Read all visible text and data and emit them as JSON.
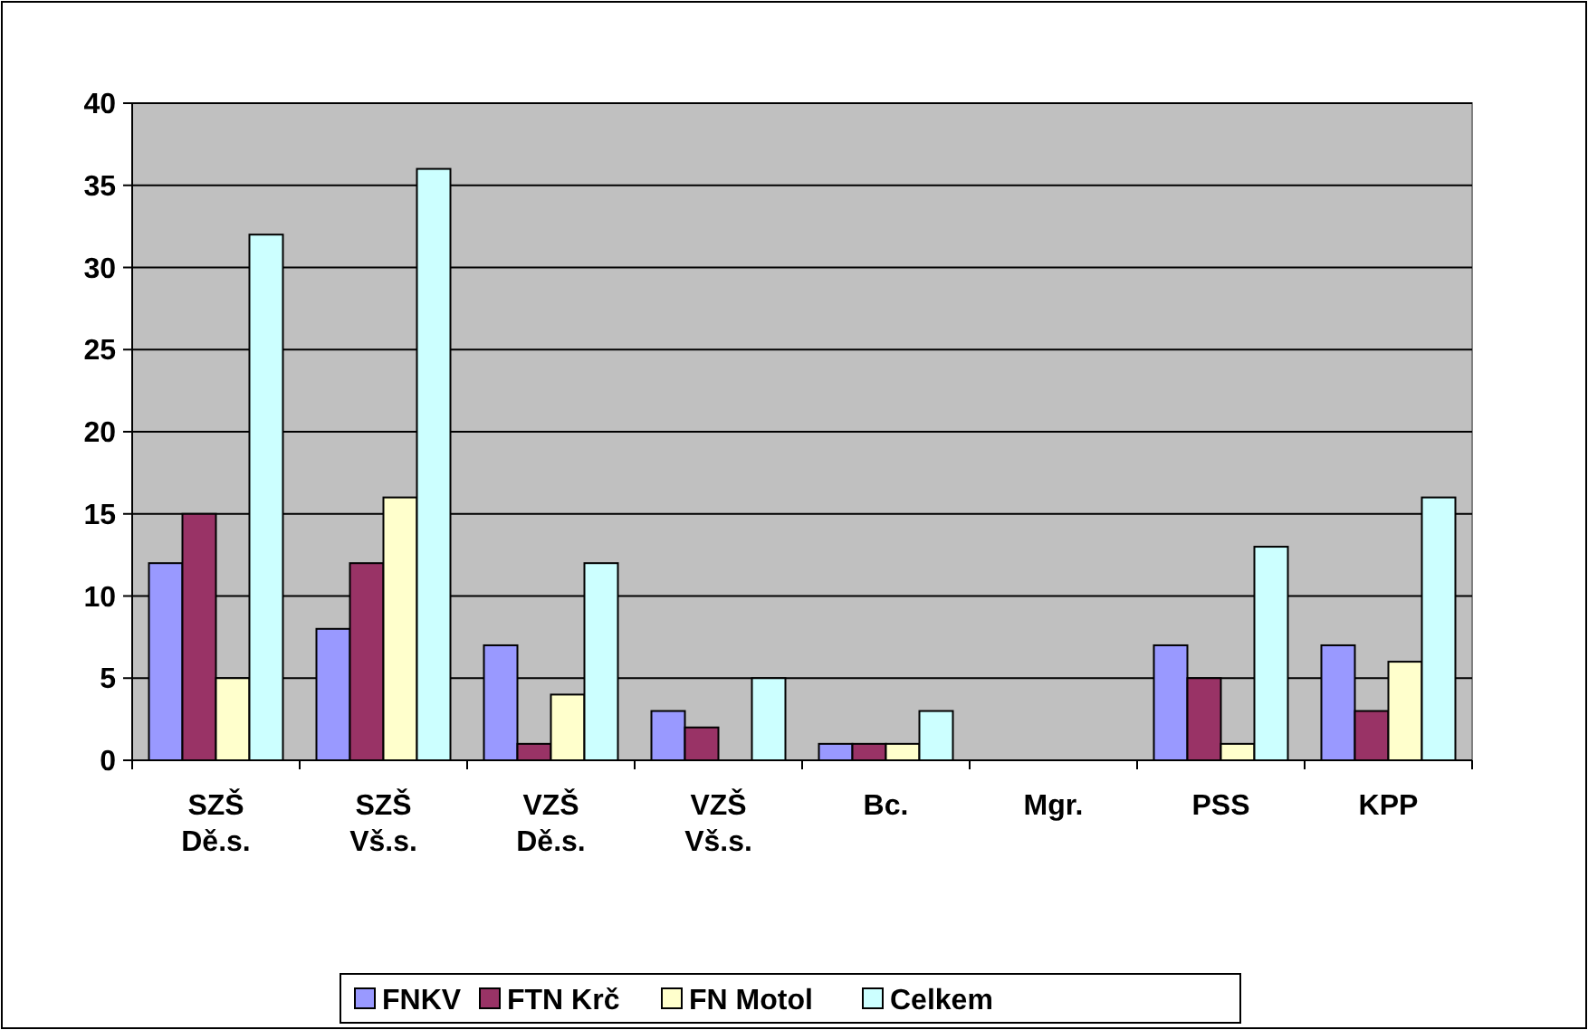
{
  "chart_data": {
    "type": "bar",
    "categories": [
      "SZŠ Dě.s.",
      "SZŠ Vš.s.",
      "VZŠ Dě.s.",
      "VZŠ Vš.s.",
      "Bc.",
      "Mgr.",
      "PSS",
      "KPP"
    ],
    "series": [
      {
        "name": "FNKV",
        "color": "#9999ff",
        "values": [
          12,
          8,
          7,
          3,
          1,
          0,
          7,
          7
        ]
      },
      {
        "name": "FTN Krč",
        "color": "#993366",
        "values": [
          15,
          12,
          1,
          2,
          1,
          0,
          5,
          3
        ]
      },
      {
        "name": "FN Motol",
        "color": "#ffffcc",
        "values": [
          5,
          16,
          4,
          0,
          1,
          0,
          1,
          6
        ]
      },
      {
        "name": "Celkem",
        "color": "#ccffff",
        "values": [
          32,
          36,
          12,
          5,
          3,
          0,
          13,
          16
        ]
      }
    ],
    "ylim": [
      0,
      40
    ],
    "yticks": [
      0,
      5,
      10,
      15,
      20,
      25,
      30,
      35,
      40
    ],
    "grid": "y",
    "legend": "bottom"
  }
}
